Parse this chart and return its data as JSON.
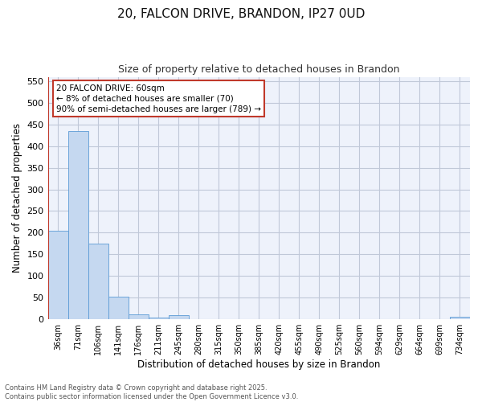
{
  "title_line1": "20, FALCON DRIVE, BRANDON, IP27 0UD",
  "title_line2": "Size of property relative to detached houses in Brandon",
  "xlabel": "Distribution of detached houses by size in Brandon",
  "ylabel": "Number of detached properties",
  "bar_labels": [
    "36sqm",
    "71sqm",
    "106sqm",
    "141sqm",
    "176sqm",
    "211sqm",
    "245sqm",
    "280sqm",
    "315sqm",
    "350sqm",
    "385sqm",
    "420sqm",
    "455sqm",
    "490sqm",
    "525sqm",
    "560sqm",
    "594sqm",
    "629sqm",
    "664sqm",
    "699sqm",
    "734sqm"
  ],
  "bar_values": [
    205,
    435,
    175,
    53,
    12,
    4,
    9,
    0,
    0,
    0,
    0,
    0,
    0,
    0,
    0,
    0,
    0,
    0,
    0,
    0,
    5
  ],
  "bar_color": "#c5d8f0",
  "bar_edge_color": "#5b9bd5",
  "grid_color": "#c0c8d8",
  "bg_color": "#eef2fb",
  "vline_color": "#c0392b",
  "annotation_text": "20 FALCON DRIVE: 60sqm\n← 8% of detached houses are smaller (70)\n90% of semi-detached houses are larger (789) →",
  "annotation_box_color": "#c0392b",
  "ylim": [
    0,
    560
  ],
  "yticks": [
    0,
    50,
    100,
    150,
    200,
    250,
    300,
    350,
    400,
    450,
    500,
    550
  ],
  "footer_line1": "Contains HM Land Registry data © Crown copyright and database right 2025.",
  "footer_line2": "Contains public sector information licensed under the Open Government Licence v3.0."
}
